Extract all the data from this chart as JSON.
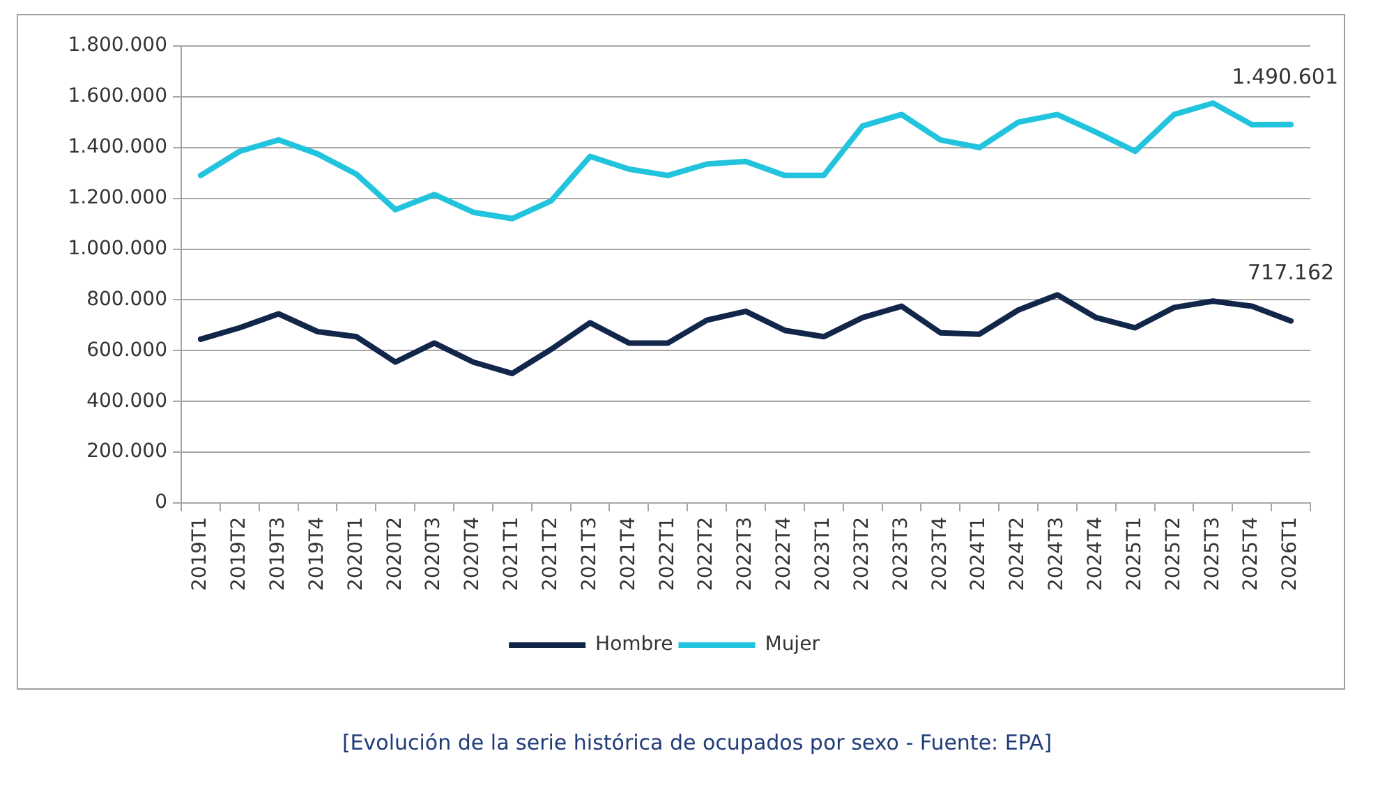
{
  "chart_data": {
    "type": "line",
    "categories": [
      "2019T1",
      "2019T2",
      "2019T3",
      "2019T4",
      "2020T1",
      "2020T2",
      "2020T3",
      "2020T4",
      "2021T1",
      "2021T2",
      "2021T3",
      "2021T4",
      "2022T1",
      "2022T2",
      "2022T3",
      "2022T4",
      "2023T1",
      "2023T2",
      "2023T3",
      "2023T4",
      "2024T1",
      "2024T2",
      "2024T3",
      "2024T4",
      "2025T1",
      "2025T2",
      "2025T3",
      "2025T4",
      "2026T1"
    ],
    "series": [
      {
        "name": "Hombre",
        "color": "#12264a",
        "values": [
          645000,
          690000,
          745000,
          675000,
          655000,
          555000,
          630000,
          555000,
          510000,
          605000,
          710000,
          630000,
          630000,
          720000,
          755000,
          680000,
          655000,
          730000,
          775000,
          670000,
          665000,
          760000,
          820000,
          730000,
          690000,
          770000,
          795000,
          775000,
          717162
        ],
        "value_labels": [
          null,
          null,
          null,
          null,
          null,
          null,
          null,
          null,
          null,
          null,
          null,
          null,
          null,
          null,
          null,
          null,
          null,
          null,
          null,
          null,
          null,
          null,
          null,
          null,
          null,
          null,
          null,
          null,
          "717.162"
        ]
      },
      {
        "name": "Mujer",
        "color": "#21c4dc",
        "values": [
          1290000,
          1385000,
          1430000,
          1375000,
          1295000,
          1155000,
          1215000,
          1145000,
          1120000,
          1190000,
          1365000,
          1315000,
          1290000,
          1335000,
          1345000,
          1290000,
          1290000,
          1485000,
          1530000,
          1430000,
          1400000,
          1500000,
          1530000,
          1460000,
          1385000,
          1530000,
          1575000,
          1490000,
          1490601
        ],
        "value_labels": [
          null,
          null,
          null,
          null,
          null,
          null,
          null,
          null,
          null,
          null,
          null,
          null,
          null,
          null,
          null,
          null,
          null,
          null,
          null,
          null,
          null,
          null,
          null,
          null,
          null,
          null,
          null,
          null,
          "1.490.601"
        ]
      }
    ],
    "ylim": [
      0,
      1800000
    ],
    "yticks": [
      {
        "value": 0,
        "label": "0"
      },
      {
        "value": 200000,
        "label": "200.000"
      },
      {
        "value": 400000,
        "label": "400.000"
      },
      {
        "value": 600000,
        "label": "600.000"
      },
      {
        "value": 800000,
        "label": "800.000"
      },
      {
        "value": 1000000,
        "label": "1.000.000"
      },
      {
        "value": 1200000,
        "label": "1.200.000"
      },
      {
        "value": 1400000,
        "label": "1.400.000"
      },
      {
        "value": 1600000,
        "label": "1.600.000"
      },
      {
        "value": 1800000,
        "label": "1.800.000"
      }
    ],
    "grid": "y",
    "legend": "bottom",
    "annotations": [
      "[Evolución de la serie histórica de ocupados por sexo - Fuente: EPA]"
    ]
  }
}
